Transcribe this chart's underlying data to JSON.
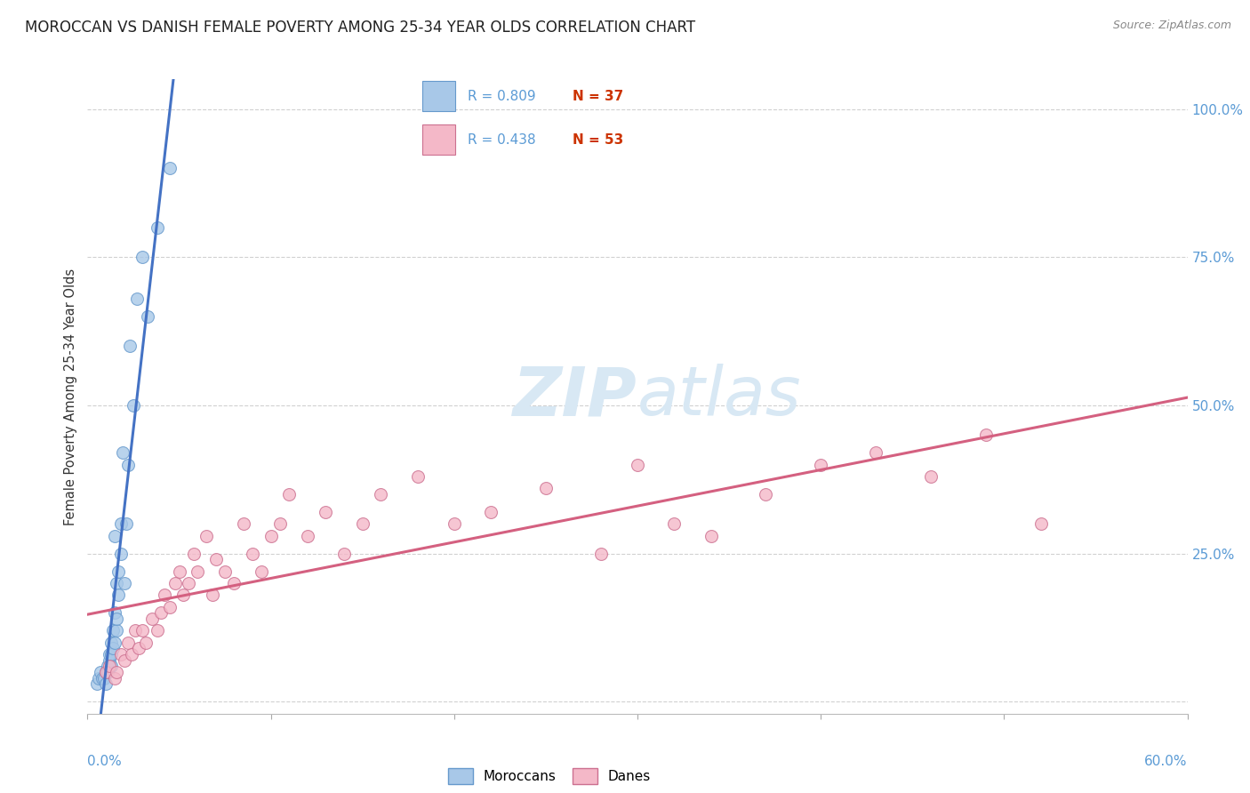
{
  "title": "MOROCCAN VS DANISH FEMALE POVERTY AMONG 25-34 YEAR OLDS CORRELATION CHART",
  "source": "Source: ZipAtlas.com",
  "ylabel": "Female Poverty Among 25-34 Year Olds",
  "xlim": [
    0.0,
    0.6
  ],
  "ylim": [
    -0.02,
    1.05
  ],
  "r_moroccan": 0.809,
  "n_moroccan": 37,
  "r_danish": 0.438,
  "n_danish": 53,
  "moroccan_color": "#a8c8e8",
  "danish_color": "#f4b8c8",
  "moroccan_line_color": "#4472c4",
  "danish_line_color": "#d46080",
  "moroccan_edge_color": "#6699cc",
  "danish_edge_color": "#cc7090",
  "legend_label_moroccan": "Moroccans",
  "legend_label_danish": "Danes",
  "background_color": "#ffffff",
  "grid_color": "#cccccc",
  "ytick_color": "#5b9bd5",
  "xtick_color": "#5b9bd5",
  "title_color": "#222222",
  "source_color": "#888888",
  "watermark_color": "#d8e8f4",
  "moroccan_x": [
    0.005,
    0.006,
    0.007,
    0.008,
    0.009,
    0.01,
    0.01,
    0.011,
    0.011,
    0.012,
    0.012,
    0.013,
    0.013,
    0.013,
    0.014,
    0.014,
    0.015,
    0.015,
    0.015,
    0.016,
    0.016,
    0.016,
    0.017,
    0.017,
    0.018,
    0.018,
    0.019,
    0.02,
    0.021,
    0.022,
    0.023,
    0.025,
    0.027,
    0.03,
    0.033,
    0.038,
    0.045
  ],
  "moroccan_y": [
    0.03,
    0.04,
    0.05,
    0.04,
    0.04,
    0.05,
    0.03,
    0.06,
    0.05,
    0.07,
    0.08,
    0.06,
    0.1,
    0.08,
    0.09,
    0.12,
    0.1,
    0.15,
    0.28,
    0.12,
    0.14,
    0.2,
    0.18,
    0.22,
    0.25,
    0.3,
    0.42,
    0.2,
    0.3,
    0.4,
    0.6,
    0.5,
    0.68,
    0.75,
    0.65,
    0.8,
    0.9
  ],
  "danish_x": [
    0.01,
    0.012,
    0.015,
    0.016,
    0.018,
    0.02,
    0.022,
    0.024,
    0.026,
    0.028,
    0.03,
    0.032,
    0.035,
    0.038,
    0.04,
    0.042,
    0.045,
    0.048,
    0.05,
    0.052,
    0.055,
    0.058,
    0.06,
    0.065,
    0.068,
    0.07,
    0.075,
    0.08,
    0.085,
    0.09,
    0.095,
    0.1,
    0.105,
    0.11,
    0.12,
    0.13,
    0.14,
    0.15,
    0.16,
    0.18,
    0.2,
    0.22,
    0.25,
    0.28,
    0.3,
    0.32,
    0.34,
    0.37,
    0.4,
    0.43,
    0.46,
    0.49,
    0.52
  ],
  "danish_y": [
    0.05,
    0.06,
    0.04,
    0.05,
    0.08,
    0.07,
    0.1,
    0.08,
    0.12,
    0.09,
    0.12,
    0.1,
    0.14,
    0.12,
    0.15,
    0.18,
    0.16,
    0.2,
    0.22,
    0.18,
    0.2,
    0.25,
    0.22,
    0.28,
    0.18,
    0.24,
    0.22,
    0.2,
    0.3,
    0.25,
    0.22,
    0.28,
    0.3,
    0.35,
    0.28,
    0.32,
    0.25,
    0.3,
    0.35,
    0.38,
    0.3,
    0.32,
    0.36,
    0.25,
    0.4,
    0.3,
    0.28,
    0.35,
    0.4,
    0.42,
    0.38,
    0.45,
    0.3
  ]
}
